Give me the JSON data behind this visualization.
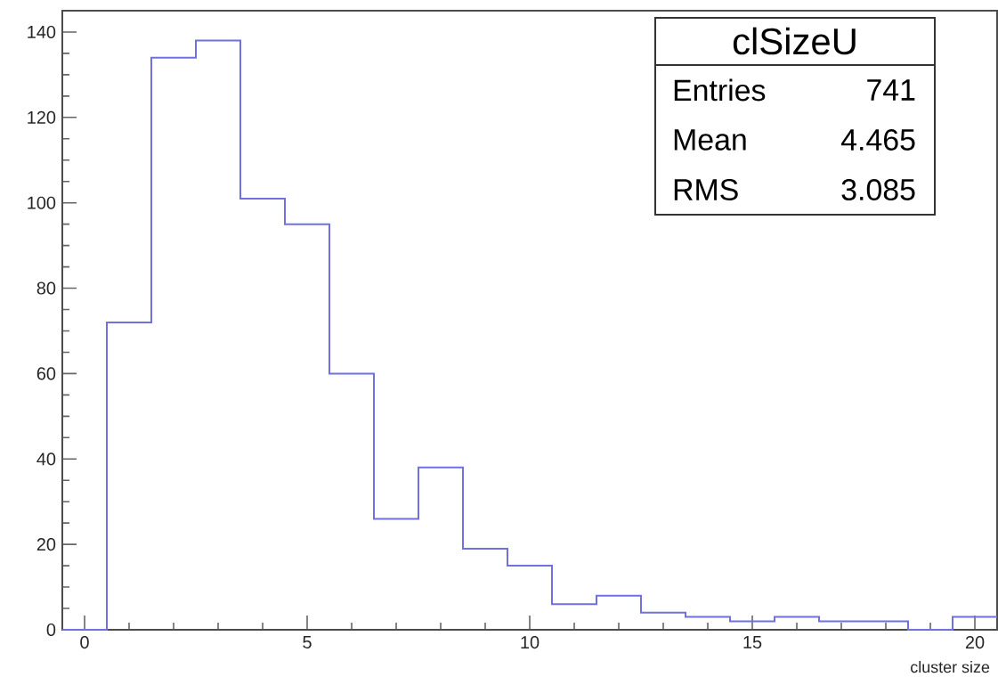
{
  "chart_data": {
    "type": "histogram",
    "title": "clSizeU",
    "xlabel": "cluster size",
    "bins": [
      -0.5,
      0.5,
      1.5,
      2.5,
      3.5,
      4.5,
      5.5,
      6.5,
      7.5,
      8.5,
      9.5,
      10.5,
      11.5,
      12.5,
      13.5,
      14.5,
      15.5,
      16.5,
      17.5,
      18.5,
      19.5,
      20.5
    ],
    "values": [
      0,
      72,
      134,
      138,
      101,
      95,
      60,
      26,
      38,
      19,
      15,
      6,
      8,
      4,
      3,
      2,
      3,
      2,
      2,
      0,
      3
    ],
    "color": "#7070e0",
    "xlim": [
      -0.5,
      20.5
    ],
    "ylim": [
      0,
      145
    ],
    "xticks": [
      0,
      5,
      10,
      15,
      20
    ],
    "yticks": [
      0,
      20,
      40,
      60,
      80,
      100,
      120,
      140
    ],
    "annotations": [
      "Entries",
      "741",
      "Mean",
      "4.465",
      "RMS",
      "3.085"
    ]
  }
}
